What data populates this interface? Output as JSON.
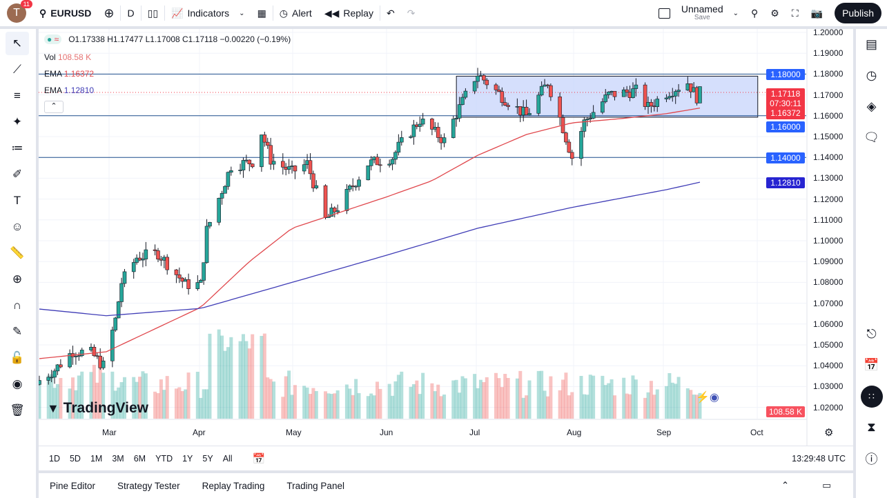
{
  "toolbar": {
    "avatar_letter": "T",
    "notifications": "11",
    "symbol": "EURUSD",
    "interval": "D",
    "indicators": "Indicators",
    "alert": "Alert",
    "replay": "Replay",
    "layout_name": "Unnamed",
    "layout_save": "Save",
    "publish": "Publish"
  },
  "legend": {
    "ohlc": "O1.17338 H1.17477 L1.17008 C1.17118 −0.00220 (−0.19%)",
    "vol_label": "Vol",
    "vol_value": "108.58 K",
    "ema1_label": "EMA",
    "ema1_value": "1.16372",
    "ema2_label": "EMA",
    "ema2_value": "1.12810"
  },
  "colors": {
    "up": "#26a69a",
    "down": "#ef5350",
    "ema_fast": "#e0474c",
    "ema_slow": "#3f3cb6",
    "hline": "#2962ff",
    "rect_fill": "#c7d4fb"
  },
  "price_axis": {
    "ticks": [
      "1.20000",
      "1.19000",
      "1.18000",
      "1.17000",
      "1.16000",
      "1.15000",
      "1.14000",
      "1.13000",
      "1.12000",
      "1.11000",
      "1.10000",
      "1.09000",
      "1.08000",
      "1.07000",
      "1.06000",
      "1.05000",
      "1.04000",
      "1.03000",
      "1.02000"
    ],
    "labels": {
      "l1": "1.18000",
      "last": "1.17118",
      "countdown": "07:30:11",
      "ema_fast": "1.16372",
      "l2": "1.16000",
      "l3": "1.14000",
      "ema_slow": "1.12810",
      "volume": "108.58 K"
    }
  },
  "time_axis": [
    "Mar",
    "Apr",
    "May",
    "Jun",
    "Jul",
    "Aug",
    "Sep",
    "Oct"
  ],
  "ranges": [
    "1D",
    "5D",
    "1M",
    "3M",
    "6M",
    "YTD",
    "1Y",
    "5Y",
    "All"
  ],
  "clock": "13:29:48 UTC",
  "logo": "TradingView",
  "bottom_tabs": [
    "Pine Editor",
    "Strategy Tester",
    "Replay Trading",
    "Trading Panel"
  ],
  "chart_data": {
    "type": "candlestick",
    "symbol": "EURUSD",
    "interval": "D",
    "ylim": [
      1.02,
      1.2
    ],
    "closes": [
      [
        "2025-02-07",
        1.033
      ],
      [
        "2025-02-12",
        1.038
      ],
      [
        "2025-02-18",
        1.047
      ],
      [
        "2025-02-24",
        1.046
      ],
      [
        "2025-02-28",
        1.04
      ],
      [
        "2025-03-04",
        1.062
      ],
      [
        "2025-03-06",
        1.08
      ],
      [
        "2025-03-11",
        1.092
      ],
      [
        "2025-03-18",
        1.094
      ],
      [
        "2025-03-27",
        1.079
      ],
      [
        "2025-04-01",
        1.079
      ],
      [
        "2025-04-03",
        1.105
      ],
      [
        "2025-04-11",
        1.136
      ],
      [
        "2025-04-18",
        1.138
      ],
      [
        "2025-04-21",
        1.152
      ],
      [
        "2025-04-24",
        1.139
      ],
      [
        "2025-05-01",
        1.133
      ],
      [
        "2025-05-06",
        1.137
      ],
      [
        "2025-05-12",
        1.11
      ],
      [
        "2025-05-16",
        1.116
      ],
      [
        "2025-05-26",
        1.137
      ],
      [
        "2025-06-03",
        1.14
      ],
      [
        "2025-06-05",
        1.145
      ],
      [
        "2025-06-12",
        1.158
      ],
      [
        "2025-06-20",
        1.148
      ],
      [
        "2025-06-24",
        1.161
      ],
      [
        "2025-06-30",
        1.178
      ],
      [
        "2025-07-01",
        1.18
      ],
      [
        "2025-07-10",
        1.168
      ],
      [
        "2025-07-17",
        1.16
      ],
      [
        "2025-07-24",
        1.176
      ],
      [
        "2025-07-28",
        1.159
      ],
      [
        "2025-08-01",
        1.14
      ],
      [
        "2025-08-05",
        1.157
      ],
      [
        "2025-08-13",
        1.17
      ],
      [
        "2025-08-22",
        1.172
      ],
      [
        "2025-08-26",
        1.164
      ],
      [
        "2025-09-01",
        1.171
      ],
      [
        "2025-09-08",
        1.176
      ],
      [
        "2025-09-11",
        1.169
      ],
      [
        "2025-09-12",
        1.171
      ]
    ],
    "ema_fast": [
      [
        "2025-02-07",
        1.0434
      ],
      [
        "2025-03-01",
        1.0467
      ],
      [
        "2025-04-01",
        1.068
      ],
      [
        "2025-04-17",
        1.09
      ],
      [
        "2025-05-01",
        1.106
      ],
      [
        "2025-06-01",
        1.121
      ],
      [
        "2025-06-16",
        1.1288
      ],
      [
        "2025-07-01",
        1.141
      ],
      [
        "2025-07-17",
        1.151
      ],
      [
        "2025-08-01",
        1.1566
      ],
      [
        "2025-08-17",
        1.1586
      ],
      [
        "2025-09-01",
        1.161
      ],
      [
        "2025-09-12",
        1.1637
      ]
    ],
    "ema_slow": [
      [
        "2025-02-07",
        1.0672
      ],
      [
        "2025-03-01",
        1.064
      ],
      [
        "2025-04-01",
        1.0675
      ],
      [
        "2025-05-01",
        1.08
      ],
      [
        "2025-06-01",
        1.093
      ],
      [
        "2025-07-01",
        1.106
      ],
      [
        "2025-08-01",
        1.116
      ],
      [
        "2025-09-01",
        1.1245
      ],
      [
        "2025-09-12",
        1.1281
      ]
    ],
    "horizontal_lines": [
      1.18,
      1.16,
      1.14
    ],
    "rectangle": {
      "from": "2025-06-24",
      "to": "2025-10-01",
      "top": 1.179,
      "bottom": 1.1593
    }
  }
}
